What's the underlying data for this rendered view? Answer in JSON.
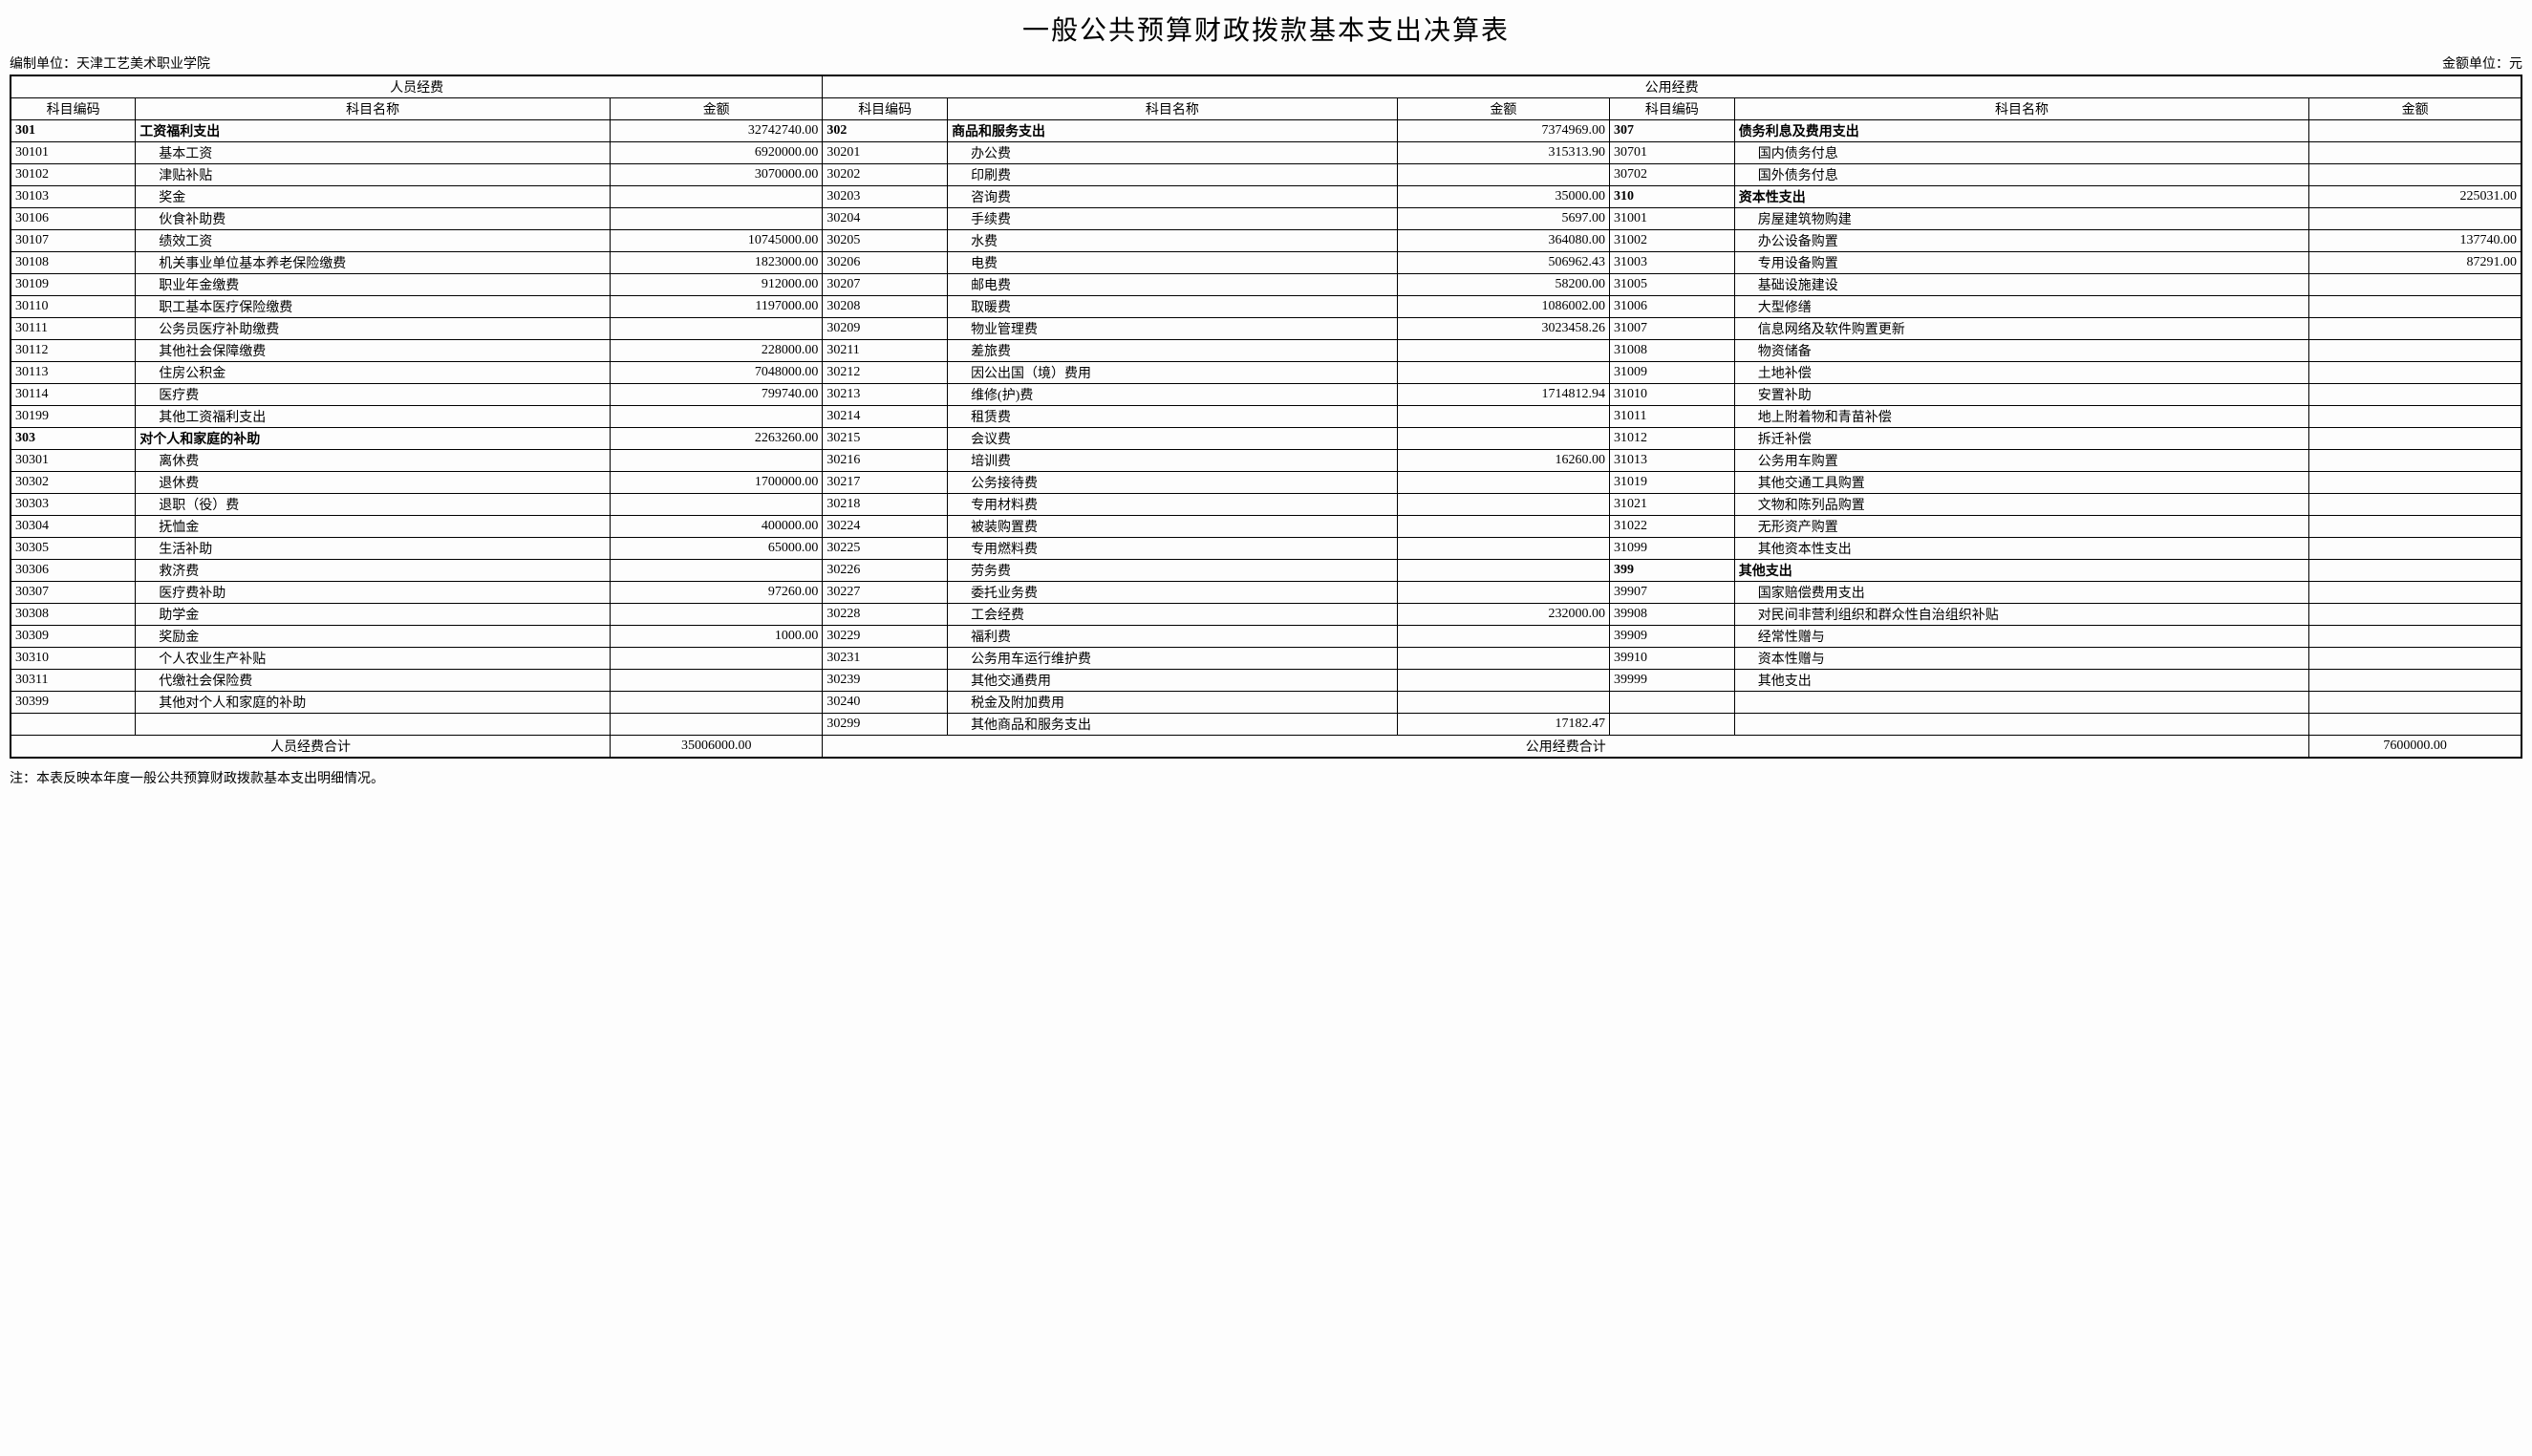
{
  "title": "一般公共预算财政拨款基本支出决算表",
  "org_label": "编制单位：天津工艺美术职业学院",
  "unit_label": "金额单位：元",
  "note": "注：本表反映本年度一般公共预算财政拨款基本支出明细情况。",
  "section_headers": {
    "personnel": "人员经费",
    "public": "公用经费"
  },
  "col_headers": {
    "code": "科目编码",
    "name": "科目名称",
    "amount": "金额"
  },
  "totals": {
    "personnel_label": "人员经费合计",
    "personnel_amount": "35006000.00",
    "public_label": "公用经费合计",
    "public_amount": "7600000.00"
  },
  "colA": [
    {
      "code": "301",
      "name": "工资福利支出",
      "amount": "32742740.00",
      "bold": true
    },
    {
      "code": "30101",
      "name": "基本工资",
      "amount": "6920000.00",
      "indent": true
    },
    {
      "code": "30102",
      "name": "津贴补贴",
      "amount": "3070000.00",
      "indent": true
    },
    {
      "code": "30103",
      "name": "奖金",
      "amount": "",
      "indent": true
    },
    {
      "code": "30106",
      "name": "伙食补助费",
      "amount": "",
      "indent": true
    },
    {
      "code": "30107",
      "name": "绩效工资",
      "amount": "10745000.00",
      "indent": true
    },
    {
      "code": "30108",
      "name": "机关事业单位基本养老保险缴费",
      "amount": "1823000.00",
      "indent": true
    },
    {
      "code": "30109",
      "name": "职业年金缴费",
      "amount": "912000.00",
      "indent": true
    },
    {
      "code": "30110",
      "name": "职工基本医疗保险缴费",
      "amount": "1197000.00",
      "indent": true
    },
    {
      "code": "30111",
      "name": "公务员医疗补助缴费",
      "amount": "",
      "indent": true
    },
    {
      "code": "30112",
      "name": "其他社会保障缴费",
      "amount": "228000.00",
      "indent": true
    },
    {
      "code": "30113",
      "name": "住房公积金",
      "amount": "7048000.00",
      "indent": true
    },
    {
      "code": "30114",
      "name": "医疗费",
      "amount": "799740.00",
      "indent": true
    },
    {
      "code": "30199",
      "name": "其他工资福利支出",
      "amount": "",
      "indent": true
    },
    {
      "code": "303",
      "name": "对个人和家庭的补助",
      "amount": "2263260.00",
      "bold": true
    },
    {
      "code": "30301",
      "name": "离休费",
      "amount": "",
      "indent": true
    },
    {
      "code": "30302",
      "name": "退休费",
      "amount": "1700000.00",
      "indent": true
    },
    {
      "code": "30303",
      "name": "退职（役）费",
      "amount": "",
      "indent": true
    },
    {
      "code": "30304",
      "name": "抚恤金",
      "amount": "400000.00",
      "indent": true
    },
    {
      "code": "30305",
      "name": "生活补助",
      "amount": "65000.00",
      "indent": true
    },
    {
      "code": "30306",
      "name": "救济费",
      "amount": "",
      "indent": true
    },
    {
      "code": "30307",
      "name": "医疗费补助",
      "amount": "97260.00",
      "indent": true
    },
    {
      "code": "30308",
      "name": "助学金",
      "amount": "",
      "indent": true
    },
    {
      "code": "30309",
      "name": "奖励金",
      "amount": "1000.00",
      "indent": true
    },
    {
      "code": "30310",
      "name": "个人农业生产补贴",
      "amount": "",
      "indent": true
    },
    {
      "code": "30311",
      "name": "代缴社会保险费",
      "amount": "",
      "indent": true
    },
    {
      "code": "30399",
      "name": "其他对个人和家庭的补助",
      "amount": "",
      "indent": true
    },
    {
      "code": "",
      "name": "",
      "amount": ""
    }
  ],
  "colB": [
    {
      "code": "302",
      "name": "商品和服务支出",
      "amount": "7374969.00",
      "bold": true
    },
    {
      "code": "30201",
      "name": "办公费",
      "amount": "315313.90",
      "indent": true
    },
    {
      "code": "30202",
      "name": "印刷费",
      "amount": "",
      "indent": true
    },
    {
      "code": "30203",
      "name": "咨询费",
      "amount": "35000.00",
      "indent": true
    },
    {
      "code": "30204",
      "name": "手续费",
      "amount": "5697.00",
      "indent": true
    },
    {
      "code": "30205",
      "name": "水费",
      "amount": "364080.00",
      "indent": true
    },
    {
      "code": "30206",
      "name": "电费",
      "amount": "506962.43",
      "indent": true
    },
    {
      "code": "30207",
      "name": "邮电费",
      "amount": "58200.00",
      "indent": true
    },
    {
      "code": "30208",
      "name": "取暖费",
      "amount": "1086002.00",
      "indent": true
    },
    {
      "code": "30209",
      "name": "物业管理费",
      "amount": "3023458.26",
      "indent": true
    },
    {
      "code": "30211",
      "name": "差旅费",
      "amount": "",
      "indent": true
    },
    {
      "code": "30212",
      "name": "因公出国（境）费用",
      "amount": "",
      "indent": true
    },
    {
      "code": "30213",
      "name": "维修(护)费",
      "amount": "1714812.94",
      "indent": true
    },
    {
      "code": "30214",
      "name": "租赁费",
      "amount": "",
      "indent": true
    },
    {
      "code": "30215",
      "name": "会议费",
      "amount": "",
      "indent": true
    },
    {
      "code": "30216",
      "name": "培训费",
      "amount": "16260.00",
      "indent": true
    },
    {
      "code": "30217",
      "name": "公务接待费",
      "amount": "",
      "indent": true
    },
    {
      "code": "30218",
      "name": "专用材料费",
      "amount": "",
      "indent": true
    },
    {
      "code": "30224",
      "name": "被装购置费",
      "amount": "",
      "indent": true
    },
    {
      "code": "30225",
      "name": "专用燃料费",
      "amount": "",
      "indent": true
    },
    {
      "code": "30226",
      "name": "劳务费",
      "amount": "",
      "indent": true
    },
    {
      "code": "30227",
      "name": "委托业务费",
      "amount": "",
      "indent": true
    },
    {
      "code": "30228",
      "name": "工会经费",
      "amount": "232000.00",
      "indent": true
    },
    {
      "code": "30229",
      "name": "福利费",
      "amount": "",
      "indent": true
    },
    {
      "code": "30231",
      "name": "公务用车运行维护费",
      "amount": "",
      "indent": true
    },
    {
      "code": "30239",
      "name": "其他交通费用",
      "amount": "",
      "indent": true
    },
    {
      "code": "30240",
      "name": "税金及附加费用",
      "amount": "",
      "indent": true
    },
    {
      "code": "30299",
      "name": "其他商品和服务支出",
      "amount": "17182.47",
      "indent": true
    }
  ],
  "colC": [
    {
      "code": "307",
      "name": "债务利息及费用支出",
      "amount": "",
      "bold": true
    },
    {
      "code": "30701",
      "name": "国内债务付息",
      "amount": "",
      "indent": true
    },
    {
      "code": "30702",
      "name": "国外债务付息",
      "amount": "",
      "indent": true
    },
    {
      "code": "310",
      "name": "资本性支出",
      "amount": "225031.00",
      "bold": true
    },
    {
      "code": "31001",
      "name": "房屋建筑物购建",
      "amount": "",
      "indent": true
    },
    {
      "code": "31002",
      "name": "办公设备购置",
      "amount": "137740.00",
      "indent": true
    },
    {
      "code": "31003",
      "name": "专用设备购置",
      "amount": "87291.00",
      "indent": true
    },
    {
      "code": "31005",
      "name": "基础设施建设",
      "amount": "",
      "indent": true
    },
    {
      "code": "31006",
      "name": "大型修缮",
      "amount": "",
      "indent": true
    },
    {
      "code": "31007",
      "name": "信息网络及软件购置更新",
      "amount": "",
      "indent": true
    },
    {
      "code": "31008",
      "name": "物资储备",
      "amount": "",
      "indent": true
    },
    {
      "code": "31009",
      "name": "土地补偿",
      "amount": "",
      "indent": true
    },
    {
      "code": "31010",
      "name": "安置补助",
      "amount": "",
      "indent": true
    },
    {
      "code": "31011",
      "name": "地上附着物和青苗补偿",
      "amount": "",
      "indent": true
    },
    {
      "code": "31012",
      "name": "拆迁补偿",
      "amount": "",
      "indent": true
    },
    {
      "code": "31013",
      "name": "公务用车购置",
      "amount": "",
      "indent": true
    },
    {
      "code": "31019",
      "name": "其他交通工具购置",
      "amount": "",
      "indent": true
    },
    {
      "code": "31021",
      "name": "文物和陈列品购置",
      "amount": "",
      "indent": true
    },
    {
      "code": "31022",
      "name": "无形资产购置",
      "amount": "",
      "indent": true
    },
    {
      "code": "31099",
      "name": "其他资本性支出",
      "amount": "",
      "indent": true
    },
    {
      "code": "399",
      "name": "其他支出",
      "amount": "",
      "bold": true
    },
    {
      "code": "39907",
      "name": "国家赔偿费用支出",
      "amount": "",
      "indent": true
    },
    {
      "code": "39908",
      "name": "对民间非营利组织和群众性自治组织补贴",
      "amount": "",
      "indent": true
    },
    {
      "code": "39909",
      "name": "经常性赠与",
      "amount": "",
      "indent": true
    },
    {
      "code": "39910",
      "name": "资本性赠与",
      "amount": "",
      "indent": true
    },
    {
      "code": "39999",
      "name": "其他支出",
      "amount": "",
      "indent": true
    },
    {
      "code": "",
      "name": "",
      "amount": ""
    },
    {
      "code": "",
      "name": "",
      "amount": ""
    }
  ]
}
